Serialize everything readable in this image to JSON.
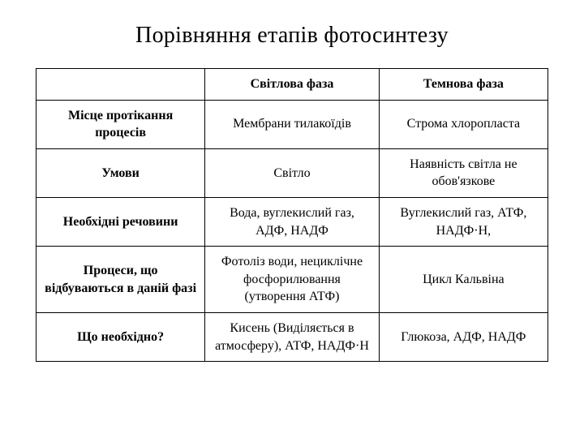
{
  "title": "Порівняння етапів фотосинтезу",
  "table": {
    "type": "table",
    "columns": [
      "",
      "Світлова фаза",
      "Темнова фаза"
    ],
    "rows": [
      {
        "header": "Місце протікання процесів",
        "c1": "Мембрани тилакоїдів",
        "c2": "Строма хлоропласта"
      },
      {
        "header": "Умови",
        "c1": "Світло",
        "c2": "Наявність світла не обов'язкове"
      },
      {
        "header": "Необхідні речовини",
        "c1": "Вода, вуглекислий газ, АДФ, НАДФ",
        "c2": "Вуглекислий газ, АТФ, НАДФ·Н,"
      },
      {
        "header": "Процеси, що відбуваються в даній фазі",
        "c1": "Фотоліз води, нециклічне фосфорилювання (утворення АТФ)",
        "c2": "Цикл Кальвіна"
      },
      {
        "header": "Що необхідно?",
        "c1": "Кисень (Виділяється в атмосферу), АТФ, НАДФ·Н",
        "c2": "Глюкоза, АДФ, НАДФ"
      }
    ],
    "border_color": "#000000",
    "background_color": "#ffffff",
    "font_family": "Georgia, Times New Roman, serif",
    "title_fontsize": 28,
    "cell_fontsize": 16,
    "header_fontweight": 700,
    "cell_align": "center",
    "col_widths_pct": [
      33,
      34,
      33
    ]
  }
}
